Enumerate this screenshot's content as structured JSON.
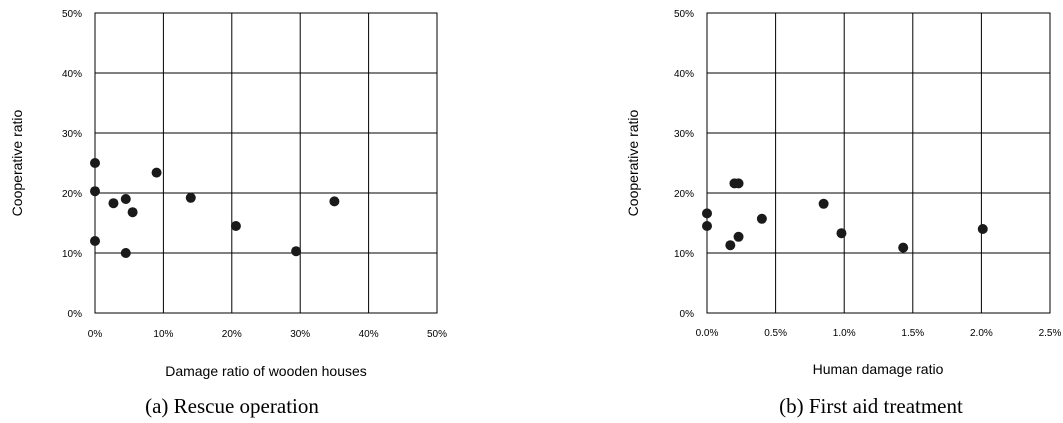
{
  "chart_data": [
    {
      "type": "scatter",
      "caption": "(a) Rescue operation",
      "xlabel": "Damage ratio of wooden houses",
      "ylabel": "Cooperative ratio",
      "xlim": [
        0,
        50
      ],
      "ylim": [
        0,
        50
      ],
      "x_ticks": [
        "0%",
        "10%",
        "20%",
        "30%",
        "40%",
        "50%"
      ],
      "y_ticks": [
        "0%",
        "10%",
        "20%",
        "30%",
        "40%",
        "50%"
      ],
      "grid": true,
      "points": [
        {
          "x": 0.0,
          "y": 25.0
        },
        {
          "x": 0.0,
          "y": 20.3
        },
        {
          "x": 0.0,
          "y": 12.0
        },
        {
          "x": 2.7,
          "y": 18.3
        },
        {
          "x": 4.5,
          "y": 19.0
        },
        {
          "x": 4.5,
          "y": 10.0
        },
        {
          "x": 5.5,
          "y": 16.8
        },
        {
          "x": 9.0,
          "y": 23.4
        },
        {
          "x": 14.0,
          "y": 19.2
        },
        {
          "x": 20.6,
          "y": 14.5
        },
        {
          "x": 29.4,
          "y": 10.3
        },
        {
          "x": 35.0,
          "y": 18.6
        }
      ]
    },
    {
      "type": "scatter",
      "caption": "(b) First aid treatment",
      "xlabel": "Human damage ratio",
      "ylabel": "Cooperative ratio",
      "xlim": [
        0,
        2.5
      ],
      "ylim": [
        0,
        50
      ],
      "x_ticks": [
        "0.0%",
        "0.5%",
        "1.0%",
        "1.5%",
        "2.0%",
        "2.5%"
      ],
      "y_ticks": [
        "0%",
        "10%",
        "20%",
        "30%",
        "40%",
        "50%"
      ],
      "grid": true,
      "points": [
        {
          "x": 0.0,
          "y": 16.6
        },
        {
          "x": 0.0,
          "y": 14.5
        },
        {
          "x": 0.17,
          "y": 11.3
        },
        {
          "x": 0.2,
          "y": 21.6
        },
        {
          "x": 0.23,
          "y": 21.6
        },
        {
          "x": 0.23,
          "y": 12.7
        },
        {
          "x": 0.4,
          "y": 15.7
        },
        {
          "x": 0.85,
          "y": 18.2
        },
        {
          "x": 0.98,
          "y": 13.3
        },
        {
          "x": 1.43,
          "y": 10.9
        },
        {
          "x": 2.01,
          "y": 14.0
        }
      ]
    }
  ]
}
